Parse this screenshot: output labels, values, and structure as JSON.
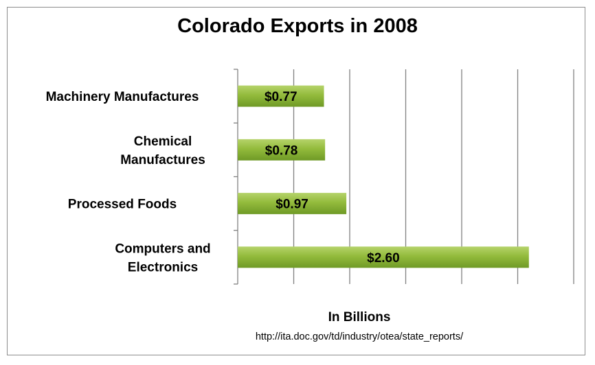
{
  "chart_data": {
    "type": "bar",
    "orientation": "horizontal",
    "title": "Colorado Exports in 2008",
    "xlabel": "In Billions",
    "ylabel": "",
    "source": "http://ita.doc.gov/td/industry/otea/state_reports/",
    "categories": [
      "Machinery Manufactures",
      "Chemical\nManufactures",
      "Processed Foods",
      "Computers and\nElectronics"
    ],
    "values": [
      0.77,
      0.78,
      0.97,
      2.6
    ],
    "data_labels": [
      "$0.77",
      "$0.78",
      "$0.97",
      "$2.60"
    ],
    "xlim": [
      0,
      3.0
    ],
    "grid": true,
    "legend": "none",
    "colors": {
      "bar_top": "#b5d36a",
      "bar_mid": "#93bb3c",
      "bar_bottom": "#6f9a26",
      "grid": "#808080"
    }
  }
}
